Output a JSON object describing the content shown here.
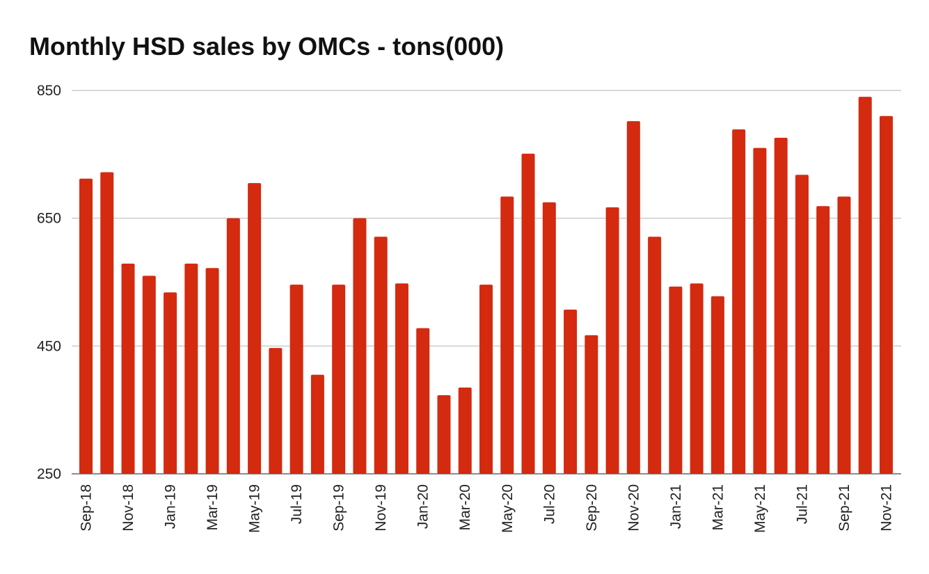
{
  "chart_data": {
    "type": "bar",
    "title": "Monthly HSD sales by OMCs - tons(000)",
    "xlabel": "",
    "ylabel": "",
    "ylim": [
      250,
      850
    ],
    "yticks": [
      250,
      450,
      650,
      850
    ],
    "grid": true,
    "bar_color": "#d42a10",
    "categories": [
      "Sep-18",
      "Oct-18",
      "Nov-18",
      "Dec-18",
      "Jan-19",
      "Feb-19",
      "Mar-19",
      "Apr-19",
      "May-19",
      "Jun-19",
      "Jul-19",
      "Aug-19",
      "Sep-19",
      "Oct-19",
      "Nov-19",
      "Dec-19",
      "Jan-20",
      "Feb-20",
      "Mar-20",
      "Apr-20",
      "May-20",
      "Jun-20",
      "Jul-20",
      "Aug-20",
      "Sep-20",
      "Oct-20",
      "Nov-20",
      "Dec-20",
      "Jan-21",
      "Feb-21",
      "Mar-21",
      "Apr-21",
      "May-21",
      "Jun-21",
      "Jul-21",
      "Aug-21",
      "Sep-21",
      "Oct-21",
      "Nov-21"
    ],
    "tick_labels": [
      "Sep-18",
      "Nov-18",
      "Jan-19",
      "Mar-19",
      "May-19",
      "Jul-19",
      "Sep-19",
      "Nov-19",
      "Jan-20",
      "Mar-20",
      "May-20",
      "Jul-20",
      "Sep-20",
      "Nov-20",
      "Jan-21",
      "Mar-21",
      "May-21",
      "Jul-21",
      "Sep-21",
      "Nov-21"
    ],
    "values": [
      712,
      722,
      579,
      560,
      534,
      579,
      572,
      650,
      705,
      447,
      546,
      405,
      546,
      650,
      621,
      548,
      478,
      373,
      385,
      546,
      684,
      751,
      675,
      507,
      467,
      667,
      802,
      621,
      543,
      548,
      528,
      789,
      760,
      776,
      718,
      669,
      684,
      840,
      810
    ]
  }
}
